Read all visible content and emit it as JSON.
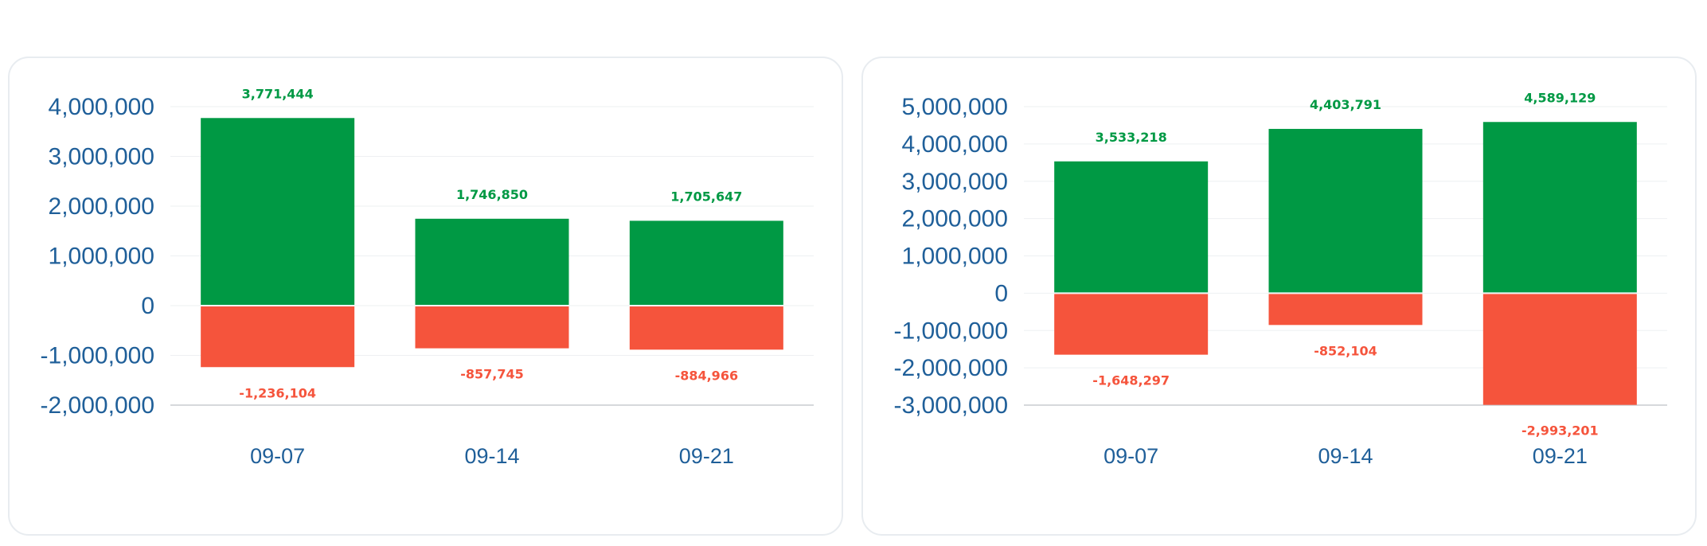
{
  "colors": {
    "positive": "#009944",
    "negative": "#f5543c",
    "axis_text": "#1f5f99",
    "grid": "#eef0f2",
    "axis_line": "#c8ccd0"
  },
  "chart_data": [
    {
      "type": "bar",
      "stacked": true,
      "categories": [
        "09-07",
        "09-14",
        "09-21"
      ],
      "series": [
        {
          "values": [
            3771444,
            1746850,
            1705647
          ]
        },
        {
          "values": [
            -1236104,
            -857745,
            -884966
          ]
        }
      ],
      "value_labels_pos": [
        "3,771,444",
        "1,746,850",
        "1,705,647"
      ],
      "value_labels_neg": [
        "-1,236,104",
        "-857,745",
        "-884,966"
      ],
      "ylim": [
        -2000000,
        4000000
      ],
      "yticks": [
        4000000,
        3000000,
        2000000,
        1000000,
        0,
        -1000000,
        -2000000
      ],
      "ytick_labels": [
        "4,000,000",
        "3,000,000",
        "2,000,000",
        "1,000,000",
        "0",
        "-1,000,000",
        "-2,000,000"
      ],
      "grid": true,
      "legend": "none"
    },
    {
      "type": "bar",
      "stacked": true,
      "categories": [
        "09-07",
        "09-14",
        "09-21"
      ],
      "series": [
        {
          "values": [
            3533218,
            4403791,
            4589129
          ]
        },
        {
          "values": [
            -1648297,
            -852104,
            -2993201
          ]
        }
      ],
      "value_labels_pos": [
        "3,533,218",
        "4,403,791",
        "4,589,129"
      ],
      "value_labels_neg": [
        "-1,648,297",
        "-852,104",
        "-2,993,201"
      ],
      "ylim": [
        -3000000,
        5000000
      ],
      "yticks": [
        5000000,
        4000000,
        3000000,
        2000000,
        1000000,
        0,
        -1000000,
        -2000000,
        -3000000
      ],
      "ytick_labels": [
        "5,000,000",
        "4,000,000",
        "3,000,000",
        "2,000,000",
        "1,000,000",
        "0",
        "-1,000,000",
        "-2,000,000",
        "-3,000,000"
      ],
      "grid": true,
      "legend": "none"
    }
  ]
}
